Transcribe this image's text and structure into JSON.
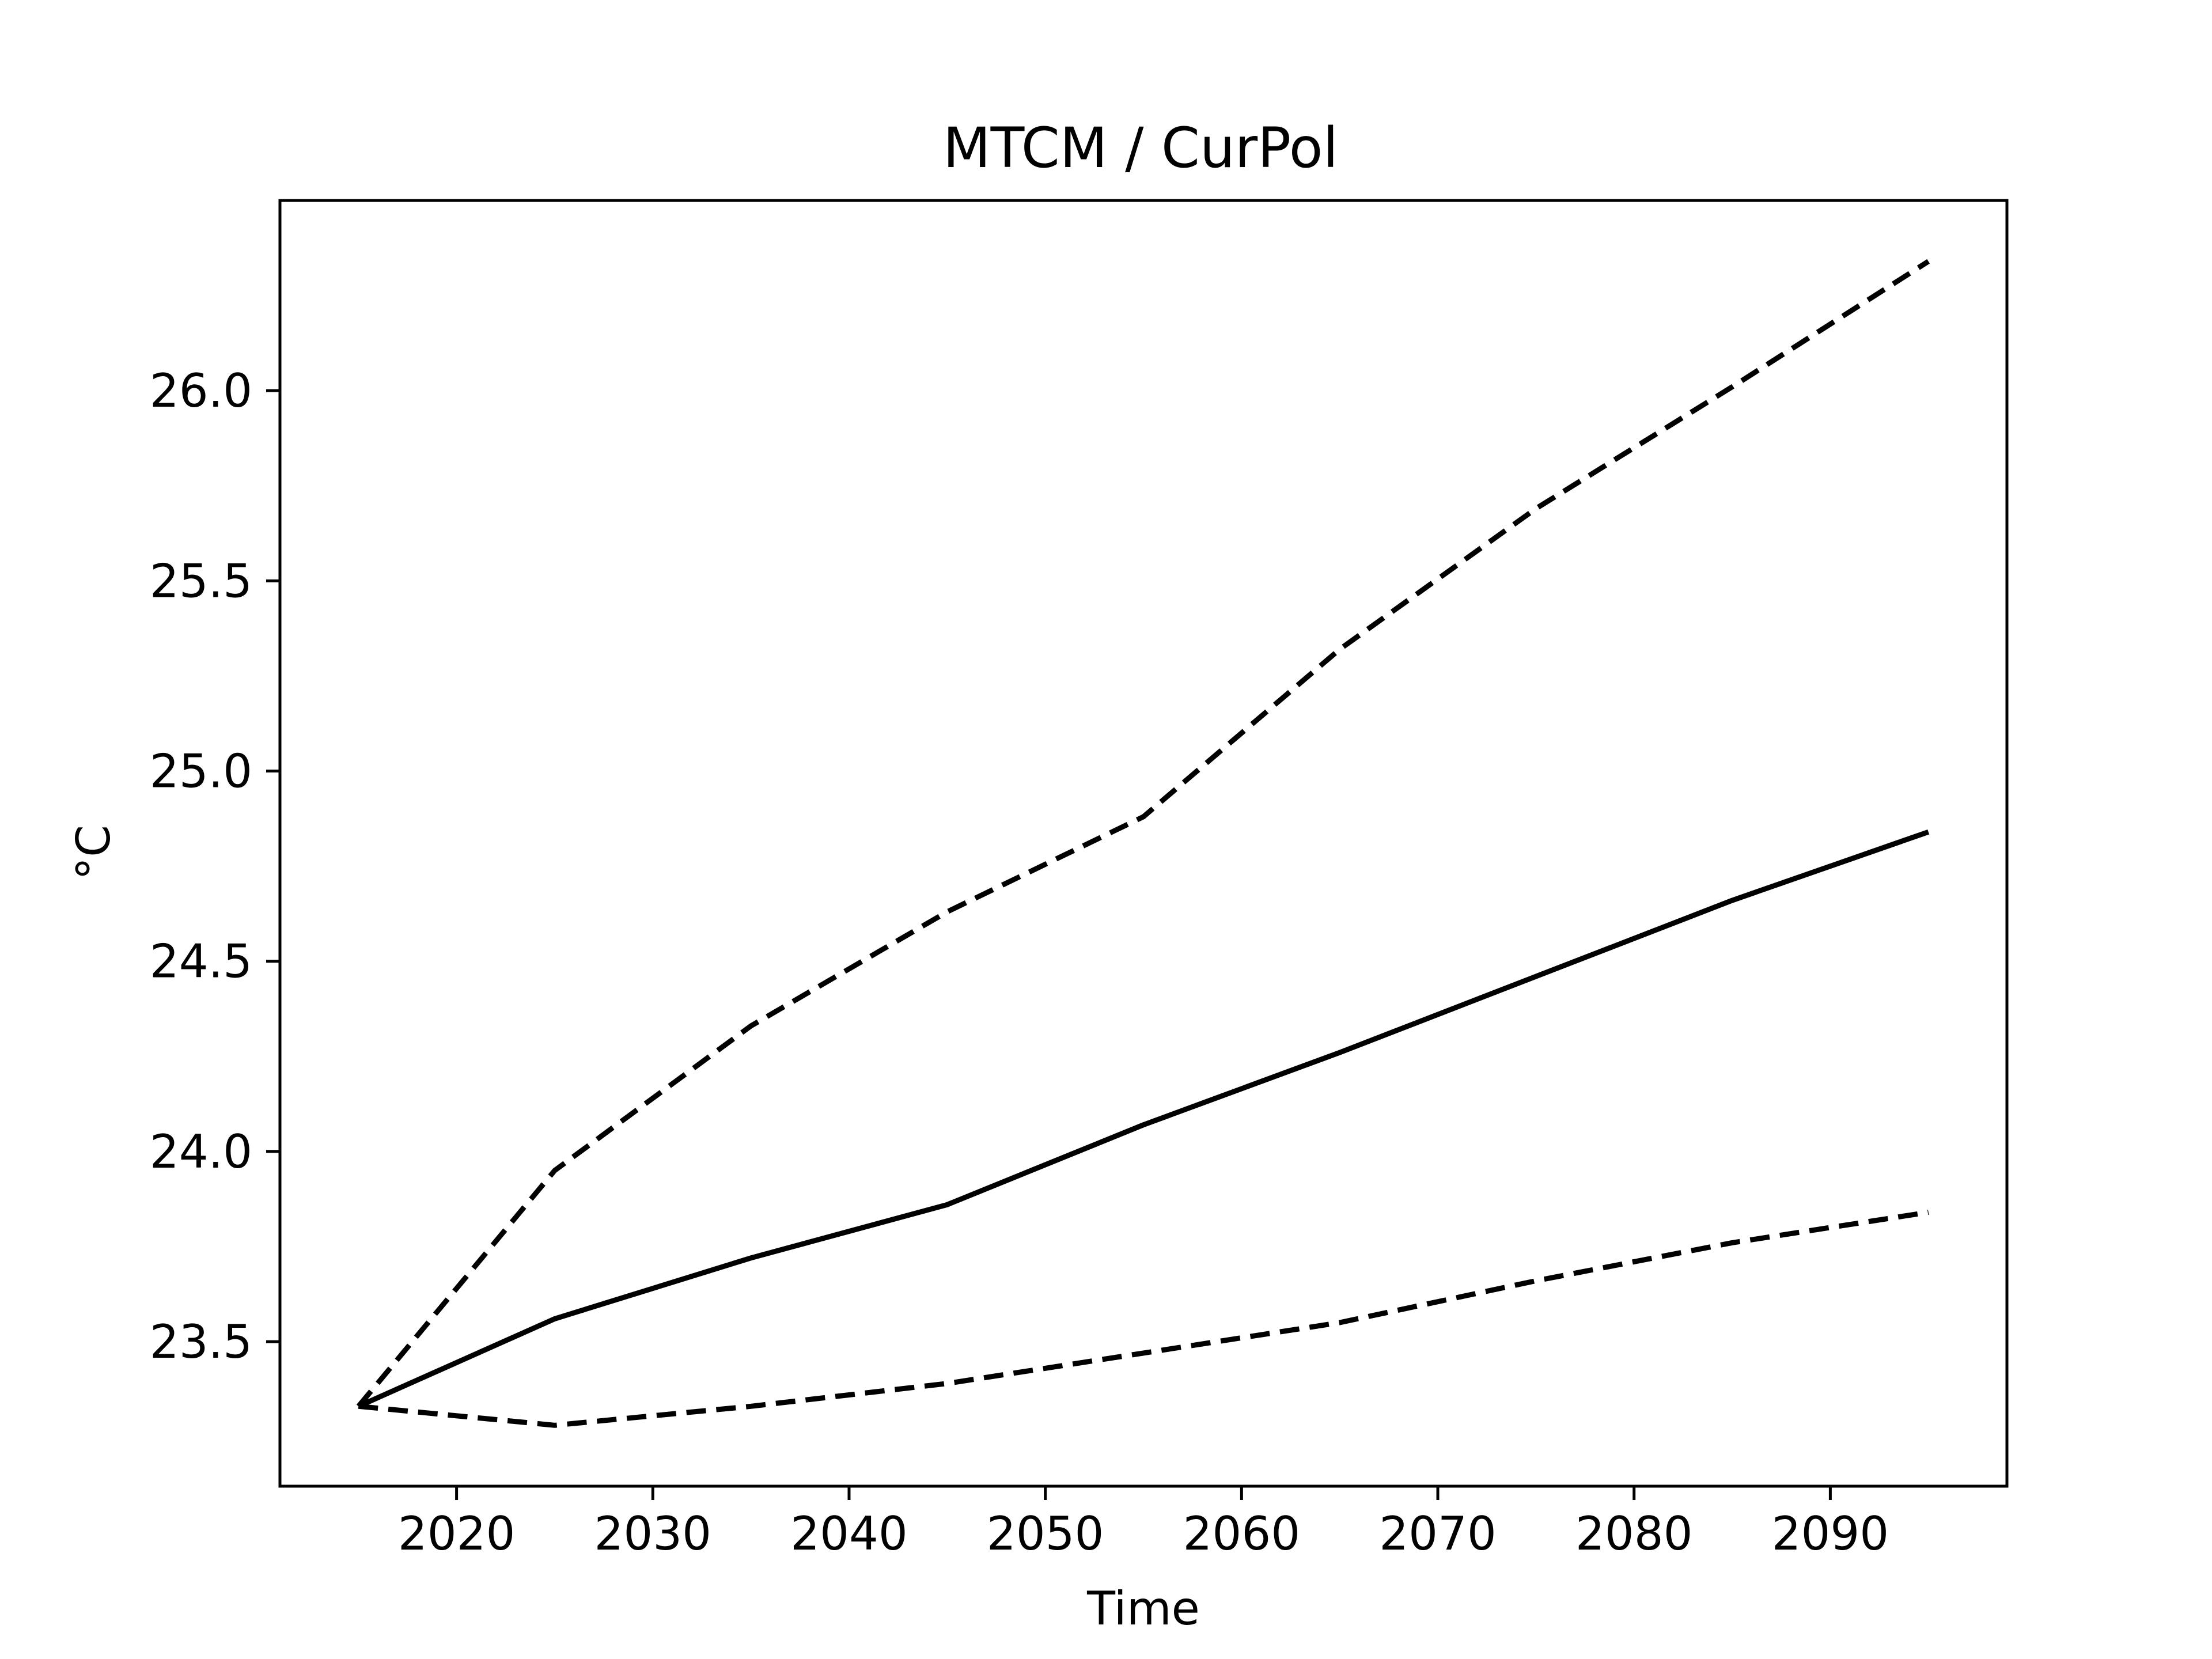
{
  "chart_data": {
    "type": "line",
    "title": "MTCM / CurPol",
    "xlabel": "Time",
    "ylabel": "°C",
    "xlim": [
      2011,
      2099
    ],
    "ylim": [
      23.12,
      26.5
    ],
    "xticks": [
      2020,
      2030,
      2040,
      2050,
      2060,
      2070,
      2080,
      2090
    ],
    "yticks": [
      23.5,
      24.0,
      24.5,
      25.0,
      25.5,
      26.0
    ],
    "ytick_labels": [
      "23.5",
      "24.0",
      "24.5",
      "25.0",
      "25.5",
      "26.0"
    ],
    "grid": false,
    "legend": "none",
    "x": [
      2015,
      2025,
      2035,
      2045,
      2055,
      2065,
      2075,
      2085,
      2095
    ],
    "series": [
      {
        "values": [
          23.33,
          23.56,
          23.72,
          23.86,
          24.07,
          24.26,
          24.46,
          24.66,
          24.84
        ],
        "style": "solid",
        "color": "#000000"
      },
      {
        "values": [
          23.33,
          23.95,
          24.33,
          24.63,
          24.88,
          25.32,
          25.69,
          26.01,
          26.34
        ],
        "style": "dashed",
        "color": "#000000"
      },
      {
        "values": [
          23.33,
          23.28,
          23.33,
          23.39,
          23.47,
          23.55,
          23.66,
          23.76,
          23.84
        ],
        "style": "dashed",
        "color": "#000000"
      }
    ]
  }
}
